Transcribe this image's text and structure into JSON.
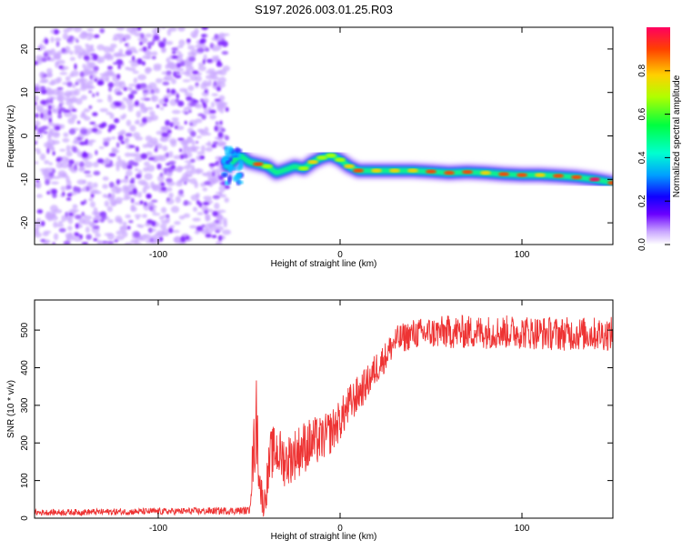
{
  "figure": {
    "title": "S197.2026.003.01.25.R03",
    "colors": {
      "snr_line": "#ee3333",
      "axes": "#000000",
      "background": "#ffffff"
    }
  },
  "chart_data": [
    {
      "type": "heatmap",
      "name": "spectrogram",
      "xlabel": "Height of straight line (km)",
      "ylabel": "Frequency (Hz)",
      "xlim": [
        -168,
        150
      ],
      "ylim": [
        -25,
        25
      ],
      "xticks": [
        -100,
        0,
        100
      ],
      "xtick_labels": [
        "-100",
        "0",
        "100"
      ],
      "yticks": [
        -20,
        -10,
        0,
        10,
        20
      ],
      "ytick_labels": [
        "-20",
        "-10",
        "0",
        "10",
        "20"
      ],
      "noise_region_x": [
        -168,
        -62
      ],
      "ridge": {
        "x": [
          -62,
          -55,
          -50,
          -45,
          -40,
          -35,
          -30,
          -25,
          -20,
          -15,
          -10,
          -5,
          0,
          5,
          10,
          20,
          30,
          40,
          50,
          60,
          70,
          80,
          90,
          100,
          110,
          120,
          130,
          140,
          150
        ],
        "y": [
          -7,
          -4.5,
          -6,
          -6.5,
          -7,
          -8.5,
          -7.8,
          -7,
          -7.5,
          -6,
          -5,
          -4.5,
          -5.5,
          -7,
          -8,
          -8,
          -8,
          -8,
          -8.2,
          -8.5,
          -8.3,
          -8.5,
          -8.8,
          -9,
          -9,
          -9.2,
          -9.5,
          -10,
          -10.8
        ],
        "amplitude": [
          0.35,
          0.4,
          0.55,
          0.9,
          0.75,
          0.6,
          0.55,
          0.65,
          0.7,
          0.8,
          0.75,
          0.7,
          0.75,
          0.85,
          0.95,
          0.8,
          0.85,
          0.8,
          0.9,
          0.95,
          0.9,
          0.85,
          0.9,
          0.95,
          0.85,
          0.9,
          0.95,
          1.0,
          0.9
        ]
      },
      "colorbar": {
        "label": "Normalized spectral amplitude",
        "range": [
          0,
          1
        ],
        "ticks": [
          0.0,
          0.2,
          0.4,
          0.6,
          0.8
        ],
        "tick_labels": [
          "0.0",
          "0.2",
          "0.4",
          "0.6",
          "0.8"
        ]
      }
    },
    {
      "type": "line",
      "name": "snr",
      "xlabel": "Height of straight line (km)",
      "ylabel": "SNR (10 * v/v)",
      "xlim": [
        -168,
        150
      ],
      "ylim": [
        0,
        580
      ],
      "xticks": [
        -100,
        0,
        100
      ],
      "xtick_labels": [
        "-100",
        "0",
        "100"
      ],
      "yticks": [
        0,
        100,
        200,
        300,
        400,
        500
      ],
      "ytick_labels": [
        "0",
        "100",
        "200",
        "300",
        "400",
        "500"
      ],
      "envelope": {
        "x": [
          -168,
          -50,
          -48,
          -46,
          -44,
          -42,
          -40,
          -38,
          -35,
          -30,
          -25,
          -20,
          -15,
          -10,
          -5,
          0,
          5,
          10,
          15,
          20,
          25,
          30,
          40,
          60,
          80,
          100,
          120,
          150
        ],
        "mean": [
          15,
          20,
          150,
          260,
          90,
          30,
          100,
          170,
          180,
          150,
          170,
          190,
          200,
          210,
          230,
          260,
          300,
          330,
          360,
          400,
          430,
          470,
          490,
          495,
          495,
          495,
          490,
          490
        ],
        "spread": [
          8,
          10,
          80,
          120,
          60,
          30,
          60,
          70,
          70,
          70,
          70,
          70,
          70,
          60,
          60,
          55,
          55,
          50,
          45,
          45,
          40,
          40,
          40,
          45,
          45,
          45,
          45,
          45
        ]
      }
    }
  ]
}
